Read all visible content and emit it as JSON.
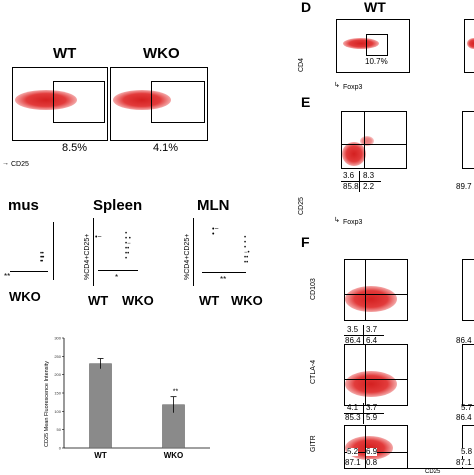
{
  "panel_labels": {
    "D": "D",
    "E": "E",
    "F": "F"
  },
  "top_left": {
    "wt_title": "WT",
    "wko_title": "WKO",
    "wt_pct": "8.5%",
    "wko_pct": "4.1%",
    "x_axis": "CD25"
  },
  "scatter_titles": {
    "thymus": "mus",
    "spleen": "Spleen",
    "mln": "MLN"
  },
  "scatter_ylabel": "%CD4+CD25+",
  "scatter_groups": {
    "wt": "WT",
    "wko": "WKO"
  },
  "scatter_sig": {
    "thymus": "**",
    "spleen": "*",
    "mln": "**"
  },
  "bar_chart": {
    "ylabel": "CD25 Mean Fluorescence Intensity",
    "sig": "**"
  },
  "panel_d": {
    "title": "WT",
    "pct": "10.7%",
    "y_axis": "CD4",
    "x_axis": "Foxp3"
  },
  "panel_e": {
    "y_axis": "CD25",
    "x_axis": "Foxp3",
    "q_ul": "3.6",
    "q_ur": "8.3",
    "q_ll": "85.8",
    "q_lr": "2.2",
    "right_partial": "89.7"
  },
  "panel_f": {
    "cd103": {
      "label": "CD103",
      "ul": "3.5",
      "ur": "3.7",
      "ll": "86.4",
      "lr": "6.4",
      "right_partial": "86.4"
    },
    "ctla4": {
      "label": "CTLA-4",
      "ul": "4.1",
      "ur": "3.7",
      "ll": "85.3",
      "lr": "5.9",
      "right_a": "5.7",
      "right_b": "86.4"
    },
    "gitr": {
      "label": "GITR",
      "ul": "5.2",
      "ur": "6.9",
      "ll": "87.1",
      "lr": "0.8",
      "right_a": "5.8",
      "right_b": "87.1"
    },
    "x_axis": "CD25"
  },
  "chart_data": {
    "type": "bar",
    "categories": [
      "WT",
      "WKO"
    ],
    "values": [
      230,
      118
    ],
    "errors": [
      14,
      22
    ],
    "ylim": [
      0,
      300
    ],
    "ylabel": "CD25 Mean Fluorescence Intensity",
    "xlabel": "",
    "title": "",
    "ticks": [
      "0",
      "50",
      "100",
      "150",
      "200",
      "250",
      "300"
    ],
    "color": "#8a8a8a"
  }
}
